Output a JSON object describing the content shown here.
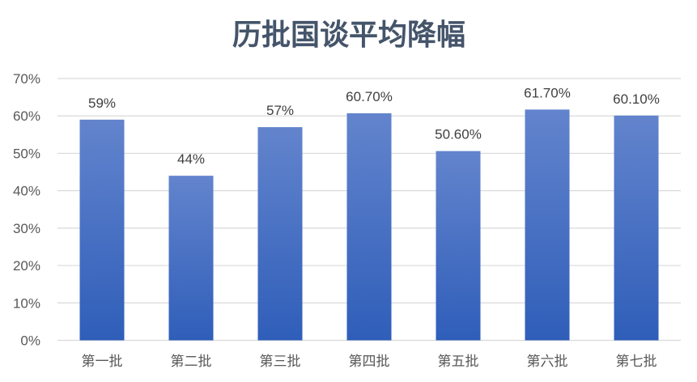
{
  "chart_data": {
    "type": "bar",
    "title": "历批国谈平均降幅",
    "categories": [
      "第一批",
      "第二批",
      "第三批",
      "第四批",
      "第五批",
      "第六批",
      "第七批"
    ],
    "values": [
      59,
      44,
      57,
      60.7,
      50.6,
      61.7,
      60.1
    ],
    "data_labels": [
      "59%",
      "44%",
      "57%",
      "60.70%",
      "50.60%",
      "61.70%",
      "60.10%"
    ],
    "y_ticks": [
      "0%",
      "10%",
      "20%",
      "30%",
      "40%",
      "50%",
      "60%",
      "70%"
    ],
    "ylim": [
      0,
      70
    ],
    "unit": "%",
    "grid": true,
    "legend": "none",
    "colors": {
      "bar_top": "#6384cd",
      "bar_bottom": "#2f5eb9",
      "grid": "#d9d9d9",
      "title": "#44546a"
    }
  }
}
